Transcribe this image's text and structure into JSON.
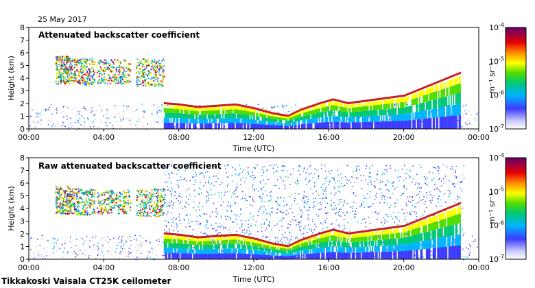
{
  "date_label": "25 May 2017",
  "footer_label": "Tikkakoski Vaisala CT25K ceilometer",
  "colors": {
    "no_data": "#d9d9d9",
    "cloud_red": "#c81e1e"
  },
  "colorbar": {
    "unit_label": "m⁻¹ sr⁻¹",
    "ticks": [
      {
        "base": "10",
        "exp": "-4",
        "value": 0.0001
      },
      {
        "base": "10",
        "exp": "-5",
        "value": 1e-05
      },
      {
        "base": "10",
        "exp": "-6",
        "value": 1e-06
      },
      {
        "base": "10",
        "exp": "-7",
        "value": 1e-07
      }
    ]
  },
  "chart_data": [
    {
      "type": "heatmap",
      "title": "Attenuated backscatter coefficient",
      "xlabel": "Time (UTC)",
      "ylabel": "Height (km)",
      "xlim": [
        0,
        24
      ],
      "ylim": [
        0,
        8
      ],
      "xticks": [
        "00:00",
        "04:00",
        "08:00",
        "12:00",
        "16:00",
        "20:00",
        "00:00"
      ],
      "yticks": [
        "0",
        "1",
        "2",
        "3",
        "4",
        "5",
        "6",
        "7",
        "8"
      ],
      "colorbar_range": [
        1e-07,
        0.0001
      ],
      "cloud_layers": [
        {
          "t_start": 1.4,
          "t_end": 2.2,
          "h_low": 3.6,
          "h_high": 5.8
        },
        {
          "t_start": 2.2,
          "t_end": 3.5,
          "h_low": 3.5,
          "h_high": 5.6
        },
        {
          "t_start": 3.6,
          "t_end": 5.4,
          "h_low": 3.6,
          "h_high": 5.5
        },
        {
          "t_start": 5.7,
          "t_end": 7.2,
          "h_low": 3.4,
          "h_high": 5.6
        }
      ],
      "boundary_layer_top_km": [
        [
          7.2,
          2.0
        ],
        [
          8,
          1.9
        ],
        [
          9,
          1.7
        ],
        [
          10,
          1.8
        ],
        [
          11,
          1.9
        ],
        [
          12,
          1.6
        ],
        [
          13,
          1.2
        ],
        [
          13.8,
          1.0
        ],
        [
          14.5,
          1.5
        ],
        [
          15.5,
          2.0
        ],
        [
          16.2,
          2.3
        ],
        [
          17,
          2.0
        ],
        [
          18,
          2.2
        ],
        [
          19,
          2.4
        ],
        [
          20,
          2.6
        ],
        [
          21,
          3.2
        ],
        [
          22,
          3.8
        ],
        [
          23.0,
          4.4
        ]
      ]
    },
    {
      "type": "heatmap",
      "title": "Raw attenuated backscatter coefficient",
      "xlabel": "Time (UTC)",
      "ylabel": "Height (km)",
      "xlim": [
        0,
        24
      ],
      "ylim": [
        0,
        8
      ],
      "xticks": [
        "00:00",
        "04:00",
        "08:00",
        "12:00",
        "16:00",
        "20:00",
        "00:00"
      ],
      "yticks": [
        "0",
        "1",
        "2",
        "3",
        "4",
        "5",
        "6",
        "7",
        "8"
      ],
      "colorbar_range": [
        1e-07,
        0.0001
      ],
      "cloud_layers": [
        {
          "t_start": 1.4,
          "t_end": 2.2,
          "h_low": 3.6,
          "h_high": 5.8
        },
        {
          "t_start": 2.2,
          "t_end": 3.5,
          "h_low": 3.5,
          "h_high": 5.6
        },
        {
          "t_start": 3.6,
          "t_end": 5.4,
          "h_low": 3.6,
          "h_high": 5.5
        },
        {
          "t_start": 5.7,
          "t_end": 7.2,
          "h_low": 3.4,
          "h_high": 5.6
        }
      ],
      "boundary_layer_top_km": [
        [
          7.2,
          2.0
        ],
        [
          8,
          1.9
        ],
        [
          9,
          1.7
        ],
        [
          10,
          1.8
        ],
        [
          11,
          1.9
        ],
        [
          12,
          1.6
        ],
        [
          13,
          1.2
        ],
        [
          13.8,
          1.0
        ],
        [
          14.5,
          1.5
        ],
        [
          15.5,
          2.0
        ],
        [
          16.2,
          2.3
        ],
        [
          17,
          2.0
        ],
        [
          18,
          2.2
        ],
        [
          19,
          2.4
        ],
        [
          20,
          2.6
        ],
        [
          21,
          3.2
        ],
        [
          22,
          3.8
        ],
        [
          23.0,
          4.4
        ]
      ],
      "noise_region_km": [
        0,
        7.5
      ]
    }
  ]
}
